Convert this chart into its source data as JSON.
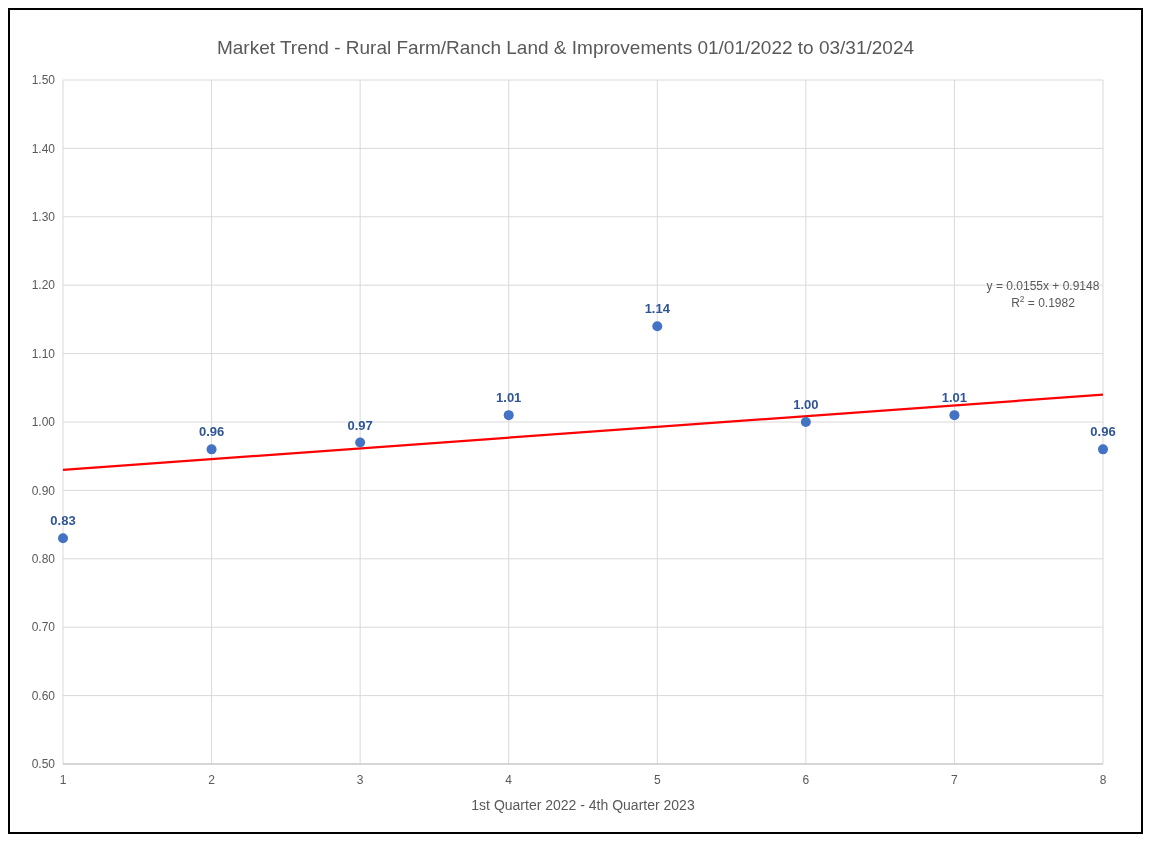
{
  "chart_data": {
    "type": "scatter",
    "title": "Market Trend - Rural Farm/Ranch Land & Improvements 01/01/2022 to 03/31/2024",
    "xlabel": "1st Quarter 2022 - 4th Quarter 2023",
    "x": [
      1,
      2,
      3,
      4,
      5,
      6,
      7,
      8
    ],
    "series": [
      {
        "color": "#4472c4",
        "values": [
          0.83,
          0.96,
          0.97,
          1.01,
          1.14,
          1.0,
          1.01,
          0.96
        ],
        "value_labels": [
          "0.83",
          "0.96",
          "0.97",
          "1.01",
          "1.14",
          "1.00",
          "1.01",
          "0.96"
        ]
      },
      {
        "type": "line",
        "marker": "none",
        "color": "#ff0000",
        "x": [
          1,
          8
        ],
        "values": [
          0.93,
          1.04
        ]
      }
    ],
    "xlim": [
      1,
      8
    ],
    "xticks": [
      1,
      2,
      3,
      4,
      5,
      6,
      7,
      8
    ],
    "ylim": [
      0.5,
      1.5
    ],
    "yticks": [
      {
        "value": 0.5,
        "label": "0.50"
      },
      {
        "value": 0.6,
        "label": "0.60"
      },
      {
        "value": 0.7,
        "label": "0.70"
      },
      {
        "value": 0.8,
        "label": "0.80"
      },
      {
        "value": 0.9,
        "label": "0.90"
      },
      {
        "value": 1.0,
        "label": "1.00"
      },
      {
        "value": 1.1,
        "label": "1.10"
      },
      {
        "value": 1.2,
        "label": "1.20"
      },
      {
        "value": 1.3,
        "label": "1.30"
      },
      {
        "value": 1.4,
        "label": "1.40"
      },
      {
        "value": 1.5,
        "label": "1.50"
      }
    ],
    "grid": true,
    "marker": "circle",
    "annotations": [
      "y = 0.0155x + 0.9148",
      "R$^{2}$ = 0.1982"
    ]
  }
}
